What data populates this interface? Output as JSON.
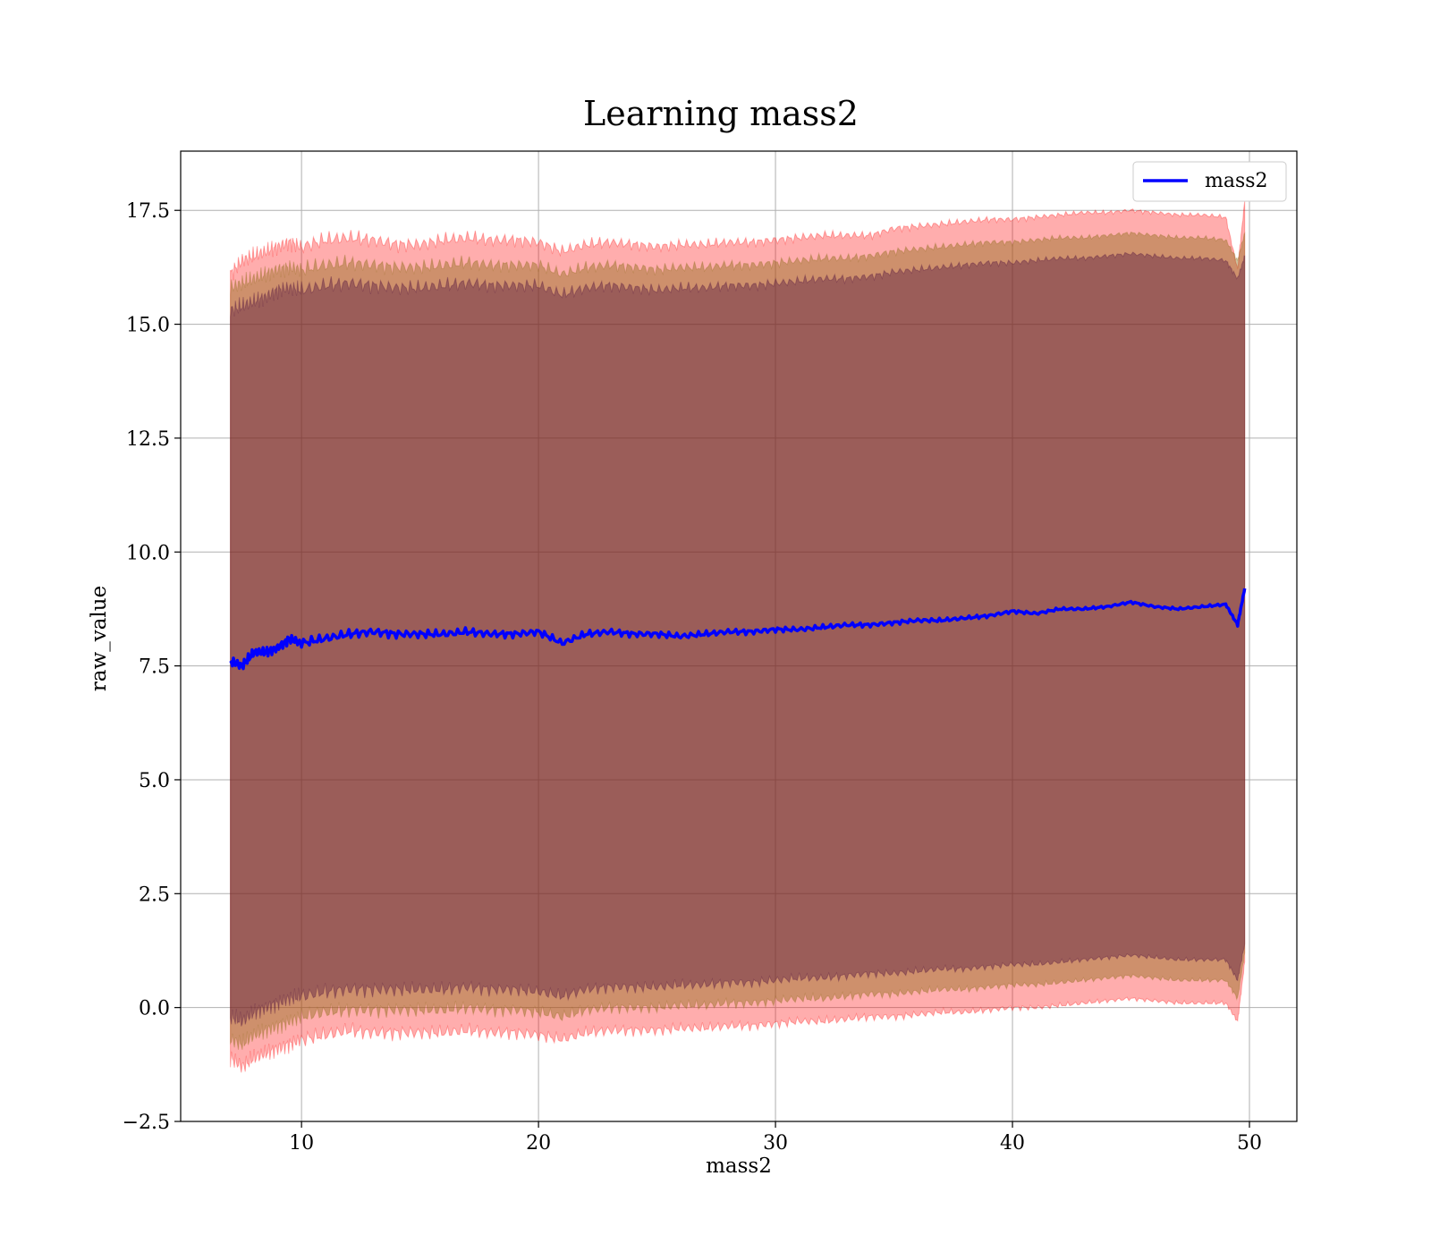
{
  "chart_data": {
    "type": "line",
    "title": "Learning mass2",
    "xlabel": "mass2",
    "ylabel": "raw_value",
    "xlim": [
      4.9,
      52.0
    ],
    "ylim": [
      -2.5,
      18.8
    ],
    "xticks": [
      10,
      20,
      30,
      40,
      50
    ],
    "xtick_labels": [
      "10",
      "20",
      "30",
      "40",
      "50"
    ],
    "yticks": [
      -2.5,
      0.0,
      2.5,
      5.0,
      7.5,
      10.0,
      12.5,
      15.0,
      17.5
    ],
    "ytick_labels": [
      "−2.5",
      "0.0",
      "2.5",
      "5.0",
      "7.5",
      "10.0",
      "12.5",
      "15.0",
      "17.5"
    ],
    "grid": true,
    "legend": {
      "position": "top-right",
      "entries": [
        "mass2"
      ]
    },
    "colors": {
      "line": "#0000ff",
      "outer_band": "#ff0000",
      "middle_band": "#8b6914",
      "inner_band": "#4a0a3a"
    },
    "x": [
      7.0,
      7.5,
      8.0,
      8.5,
      9.0,
      9.5,
      10.0,
      11.0,
      12.0,
      13.0,
      14.0,
      15.0,
      16.0,
      17.0,
      18.0,
      19.0,
      20.0,
      21.0,
      22.0,
      23.0,
      24.0,
      25.0,
      26.0,
      27.0,
      28.0,
      29.0,
      30.0,
      31.0,
      32.0,
      33.0,
      34.0,
      35.0,
      36.0,
      37.0,
      38.0,
      39.0,
      40.0,
      41.0,
      42.0,
      43.0,
      44.0,
      45.0,
      46.0,
      47.0,
      48.0,
      49.0,
      49.5,
      49.8
    ],
    "series": [
      {
        "name": "mass2",
        "values": [
          7.6,
          7.5,
          7.8,
          7.8,
          7.9,
          8.1,
          8.0,
          8.1,
          8.2,
          8.25,
          8.2,
          8.2,
          8.2,
          8.25,
          8.2,
          8.2,
          8.25,
          8.0,
          8.2,
          8.25,
          8.2,
          8.2,
          8.15,
          8.2,
          8.25,
          8.25,
          8.3,
          8.3,
          8.35,
          8.4,
          8.4,
          8.45,
          8.5,
          8.5,
          8.55,
          8.6,
          8.7,
          8.65,
          8.75,
          8.75,
          8.8,
          8.9,
          8.8,
          8.75,
          8.8,
          8.85,
          8.4,
          9.2
        ]
      }
    ],
    "bands": [
      {
        "upper": [
          16.1,
          16.4,
          16.5,
          16.6,
          16.7,
          16.8,
          16.7,
          16.85,
          16.9,
          16.85,
          16.75,
          16.75,
          16.85,
          16.9,
          16.85,
          16.85,
          16.8,
          16.6,
          16.75,
          16.8,
          16.75,
          16.7,
          16.75,
          16.75,
          16.8,
          16.8,
          16.85,
          16.9,
          16.95,
          16.95,
          16.95,
          17.1,
          17.15,
          17.2,
          17.25,
          17.3,
          17.3,
          17.35,
          17.4,
          17.45,
          17.45,
          17.5,
          17.45,
          17.4,
          17.4,
          17.35,
          16.2,
          17.7
        ],
        "lower": [
          -1.1,
          -1.3,
          -1.1,
          -1.0,
          -0.9,
          -0.8,
          -0.7,
          -0.6,
          -0.5,
          -0.55,
          -0.55,
          -0.55,
          -0.55,
          -0.5,
          -0.55,
          -0.55,
          -0.6,
          -0.7,
          -0.55,
          -0.5,
          -0.5,
          -0.5,
          -0.45,
          -0.45,
          -0.4,
          -0.4,
          -0.35,
          -0.3,
          -0.3,
          -0.25,
          -0.2,
          -0.2,
          -0.15,
          -0.1,
          -0.1,
          -0.05,
          0.0,
          0.0,
          0.05,
          0.1,
          0.15,
          0.2,
          0.15,
          0.1,
          0.1,
          0.1,
          -0.3,
          1.0
        ]
      },
      {
        "upper": [
          15.8,
          15.9,
          16.0,
          16.1,
          16.2,
          16.25,
          16.2,
          16.3,
          16.35,
          16.3,
          16.25,
          16.25,
          16.3,
          16.35,
          16.3,
          16.3,
          16.3,
          16.1,
          16.25,
          16.3,
          16.25,
          16.2,
          16.25,
          16.25,
          16.3,
          16.3,
          16.35,
          16.4,
          16.45,
          16.45,
          16.5,
          16.6,
          16.65,
          16.7,
          16.75,
          16.8,
          16.8,
          16.85,
          16.9,
          16.9,
          16.95,
          17.0,
          16.95,
          16.9,
          16.9,
          16.85,
          16.4,
          17.0
        ],
        "lower": [
          -0.7,
          -0.8,
          -0.6,
          -0.5,
          -0.4,
          -0.3,
          -0.2,
          -0.1,
          -0.05,
          -0.05,
          -0.05,
          -0.05,
          -0.05,
          0.0,
          -0.05,
          -0.05,
          -0.1,
          -0.2,
          -0.05,
          0.0,
          0.0,
          0.0,
          0.05,
          0.05,
          0.1,
          0.1,
          0.15,
          0.2,
          0.2,
          0.25,
          0.3,
          0.3,
          0.35,
          0.4,
          0.4,
          0.45,
          0.5,
          0.5,
          0.55,
          0.6,
          0.65,
          0.7,
          0.65,
          0.6,
          0.6,
          0.6,
          0.2,
          1.2
        ]
      },
      {
        "upper": [
          15.3,
          15.4,
          15.5,
          15.6,
          15.75,
          15.8,
          15.75,
          15.85,
          15.9,
          15.85,
          15.8,
          15.8,
          15.85,
          15.9,
          15.85,
          15.85,
          15.85,
          15.65,
          15.8,
          15.85,
          15.8,
          15.75,
          15.8,
          15.8,
          15.85,
          15.85,
          15.9,
          15.95,
          16.0,
          16.0,
          16.05,
          16.15,
          16.2,
          16.25,
          16.3,
          16.35,
          16.35,
          16.4,
          16.45,
          16.45,
          16.5,
          16.55,
          16.5,
          16.45,
          16.45,
          16.4,
          16.0,
          16.5
        ],
        "lower": [
          -0.2,
          -0.3,
          -0.1,
          0.0,
          0.1,
          0.2,
          0.25,
          0.35,
          0.4,
          0.4,
          0.4,
          0.4,
          0.4,
          0.45,
          0.4,
          0.4,
          0.35,
          0.25,
          0.4,
          0.45,
          0.45,
          0.45,
          0.5,
          0.5,
          0.55,
          0.55,
          0.6,
          0.65,
          0.65,
          0.7,
          0.75,
          0.75,
          0.8,
          0.85,
          0.85,
          0.9,
          0.95,
          0.95,
          1.0,
          1.05,
          1.1,
          1.15,
          1.1,
          1.05,
          1.05,
          1.05,
          0.6,
          1.4
        ]
      }
    ]
  }
}
